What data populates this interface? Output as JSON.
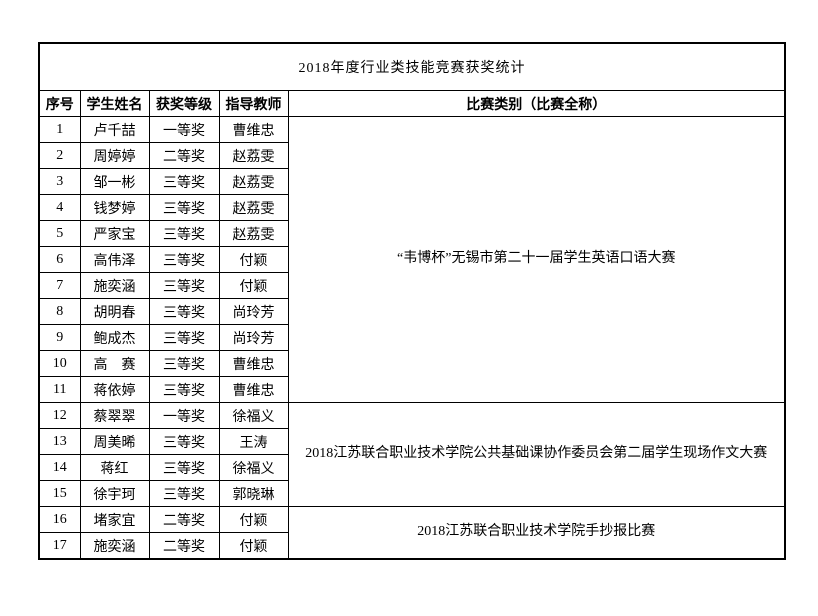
{
  "title": "2018年度行业类技能竞赛获奖统计",
  "table": {
    "headers": [
      "序号",
      "学生姓名",
      "获奖等级",
      "指导教师",
      "比赛类别（比赛全称）"
    ],
    "rows": [
      {
        "no": "1",
        "name": "卢千喆",
        "award": "一等奖",
        "teacher": "曹维忠"
      },
      {
        "no": "2",
        "name": "周婷婷",
        "award": "二等奖",
        "teacher": "赵荔雯"
      },
      {
        "no": "3",
        "name": "邹一彬",
        "award": "三等奖",
        "teacher": "赵荔雯"
      },
      {
        "no": "4",
        "name": "钱梦婷",
        "award": "三等奖",
        "teacher": "赵荔雯"
      },
      {
        "no": "5",
        "name": "严家宝",
        "award": "三等奖",
        "teacher": "赵荔雯"
      },
      {
        "no": "6",
        "name": "高伟泽",
        "award": "三等奖",
        "teacher": "付颖"
      },
      {
        "no": "7",
        "name": "施奕涵",
        "award": "三等奖",
        "teacher": "付颖"
      },
      {
        "no": "8",
        "name": "胡明春",
        "award": "三等奖",
        "teacher": "尚玲芳"
      },
      {
        "no": "9",
        "name": "鲍成杰",
        "award": "三等奖",
        "teacher": "尚玲芳"
      },
      {
        "no": "10",
        "name": "高　赛",
        "award": "三等奖",
        "teacher": "曹维忠"
      },
      {
        "no": "11",
        "name": "蒋依婷",
        "award": "三等奖",
        "teacher": "曹维忠"
      },
      {
        "no": "12",
        "name": "蔡翠翠",
        "award": "一等奖",
        "teacher": "徐福义"
      },
      {
        "no": "13",
        "name": "周美晞",
        "award": "三等奖",
        "teacher": "王涛"
      },
      {
        "no": "14",
        "name": "蒋红",
        "award": "三等奖",
        "teacher": "徐福义"
      },
      {
        "no": "15",
        "name": "徐宇珂",
        "award": "三等奖",
        "teacher": "郭晓琳"
      },
      {
        "no": "16",
        "name": "堵家宜",
        "award": "二等奖",
        "teacher": "付颖"
      },
      {
        "no": "17",
        "name": "施奕涵",
        "award": "二等奖",
        "teacher": "付颖"
      }
    ],
    "competitions": [
      {
        "label": "“韦博杯”无锡市第二十一届学生英语口语大赛",
        "row_span": 11
      },
      {
        "label": "2018江苏联合职业技术学院公共基础课协作委员会第二届学生现场作文大赛",
        "row_span": 4
      },
      {
        "label": "2018江苏联合职业技术学院手抄报比赛",
        "row_span": 2
      }
    ]
  }
}
